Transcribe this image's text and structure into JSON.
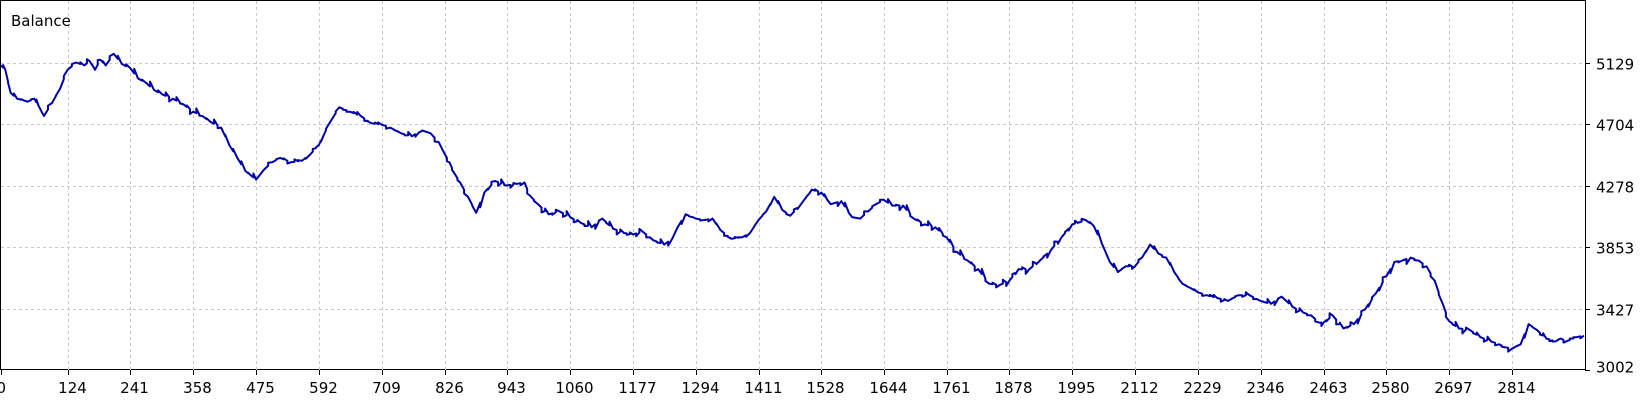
{
  "chart_data": {
    "type": "line",
    "title": "Balance",
    "xlabel": "",
    "ylabel": "",
    "grid": true,
    "line_color": "#0000a8",
    "xlim": [
      0,
      2950
    ],
    "ylim": [
      3002,
      5556
    ],
    "x_ticks": [
      "0",
      "124",
      "241",
      "358",
      "475",
      "592",
      "709",
      "826",
      "943",
      "1060",
      "1177",
      "1294",
      "1411",
      "1528",
      "1644",
      "1761",
      "1878",
      "1995",
      "2112",
      "2229",
      "2346",
      "2463",
      "2580",
      "2697",
      "2814"
    ],
    "y_ticks": [
      "5129",
      "4704",
      "4278",
      "3853",
      "3427",
      "3002"
    ],
    "series": [
      {
        "x": [
          0,
          8,
          18,
          30,
          50,
          62,
          70,
          80,
          95,
          110,
          124,
          140,
          155,
          165,
          175,
          185,
          195,
          210,
          225,
          241,
          255,
          270,
          285,
          300,
          320,
          340,
          358,
          375,
          390,
          410,
          425,
          440,
          455,
          465,
          475,
          490,
          505,
          520,
          540,
          560,
          575,
          592,
          600,
          610,
          630,
          650,
          670,
          690,
          709,
          725,
          745,
          765,
          785,
          800,
          815,
          826,
          835,
          845,
          855,
          870,
          885,
          900,
          920,
          943,
          960,
          975,
          985,
          1000,
          1020,
          1040,
          1060,
          1080,
          1100,
          1120,
          1140,
          1160,
          1177,
          1195,
          1215,
          1235,
          1250,
          1260,
          1275,
          1294,
          1310,
          1325,
          1340,
          1360,
          1380,
          1395,
          1411,
          1425,
          1440,
          1455,
          1470,
          1490,
          1510,
          1528,
          1545,
          1565,
          1585,
          1600,
          1615,
          1630,
          1644,
          1660,
          1680,
          1700,
          1720,
          1740,
          1761,
          1780,
          1800,
          1820,
          1840,
          1860,
          1878,
          1895,
          1915,
          1935,
          1955,
          1975,
          1995,
          2005,
          2020,
          2035,
          2050,
          2065,
          2080,
          2095,
          2112,
          2125,
          2140,
          2155,
          2170,
          2185,
          2200,
          2215,
          2229,
          2245,
          2265,
          2285,
          2305,
          2325,
          2346,
          2365,
          2385,
          2405,
          2425,
          2440,
          2455,
          2463,
          2480,
          2500,
          2520,
          2540,
          2560,
          2580,
          2595,
          2610,
          2625,
          2640,
          2655,
          2670,
          2685,
          2697,
          2715,
          2735,
          2755,
          2775,
          2790,
          2800,
          2814,
          2830,
          2845,
          2860,
          2878,
          2895,
          2905,
          2915,
          2935,
          2948
        ],
        "y": [
          5110,
          5080,
          4920,
          4880,
          4860,
          4880,
          4830,
          4760,
          4850,
          4950,
          5080,
          5130,
          5110,
          5140,
          5080,
          5150,
          5110,
          5190,
          5120,
          5090,
          5020,
          4990,
          4940,
          4910,
          4880,
          4840,
          4790,
          4760,
          4720,
          4680,
          4560,
          4470,
          4380,
          4350,
          4320,
          4390,
          4440,
          4470,
          4440,
          4450,
          4490,
          4560,
          4620,
          4700,
          4820,
          4790,
          4760,
          4710,
          4700,
          4680,
          4640,
          4620,
          4660,
          4640,
          4580,
          4500,
          4440,
          4360,
          4300,
          4200,
          4090,
          4230,
          4310,
          4280,
          4290,
          4300,
          4210,
          4150,
          4080,
          4100,
          4060,
          4020,
          3990,
          4050,
          3980,
          3950,
          3940,
          3960,
          3900,
          3870,
          3910,
          3990,
          4080,
          4050,
          4040,
          4050,
          3970,
          3910,
          3920,
          3950,
          4040,
          4100,
          4200,
          4110,
          4070,
          4150,
          4250,
          4230,
          4150,
          4170,
          4060,
          4050,
          4100,
          4150,
          4180,
          4140,
          4140,
          4050,
          4010,
          3990,
          3920,
          3820,
          3760,
          3700,
          3600,
          3590,
          3620,
          3700,
          3700,
          3760,
          3830,
          3920,
          4010,
          4020,
          4040,
          4000,
          3880,
          3750,
          3680,
          3720,
          3720,
          3780,
          3870,
          3810,
          3780,
          3680,
          3600,
          3570,
          3540,
          3520,
          3500,
          3480,
          3520,
          3520,
          3480,
          3460,
          3510,
          3440,
          3400,
          3380,
          3330,
          3330,
          3380,
          3290,
          3320,
          3420,
          3530,
          3650,
          3750,
          3760,
          3780,
          3760,
          3720,
          3620,
          3460,
          3340,
          3290,
          3280,
          3230,
          3200,
          3180,
          3160,
          3150,
          3180,
          3320,
          3280,
          3220,
          3200,
          3220,
          3200,
          3230,
          3240
        ]
      }
    ]
  }
}
